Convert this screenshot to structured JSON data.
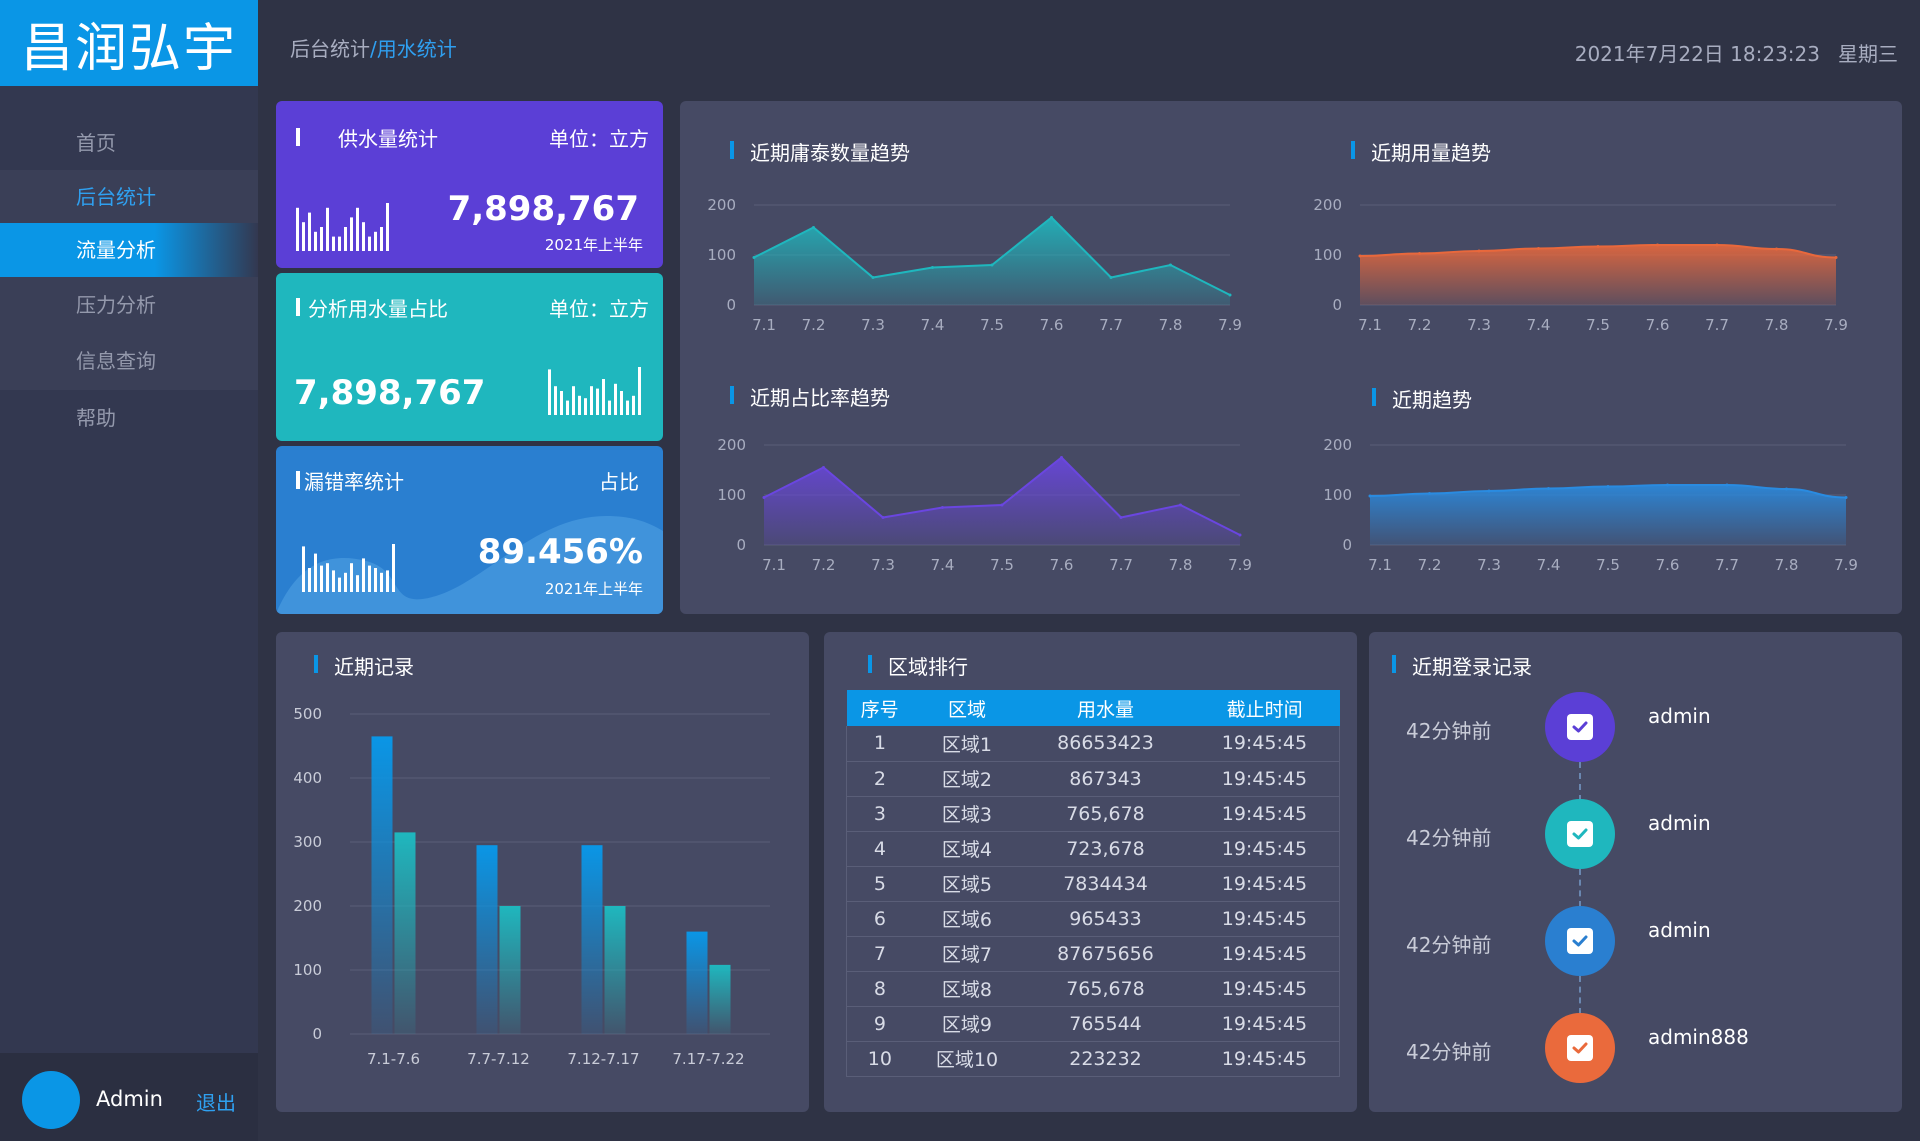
{
  "logo": "昌润弘宇",
  "breadcrumb": {
    "parent": "后台统计",
    "sep": "/",
    "current": "用水统计"
  },
  "datetime": {
    "date": "2021年7月22日 18:23:23",
    "weekday": "星期三"
  },
  "sidebar": {
    "items": [
      {
        "label": "首页"
      },
      {
        "label": "后台统计"
      },
      {
        "label": "流量分析"
      },
      {
        "label": "压力分析"
      },
      {
        "label": "信息查询"
      },
      {
        "label": "帮助"
      }
    ]
  },
  "user": {
    "name": "Admin",
    "logout": "退出"
  },
  "cards": {
    "supply": {
      "title": "供水量统计",
      "unit": "单位：立方",
      "value": "7,898,767",
      "period": "2021年上半年",
      "bars": [
        0.9,
        0.6,
        0.8,
        0.4,
        0.5,
        0.9,
        0.3,
        0.3,
        0.5,
        0.7,
        0.9,
        0.6,
        0.3,
        0.4,
        0.5,
        1.0
      ]
    },
    "ratio": {
      "title": "分析用水量占比",
      "unit": "单位：立方",
      "value": "7,898,767",
      "bars": [
        0.95,
        0.6,
        0.5,
        0.3,
        0.6,
        0.4,
        0.35,
        0.6,
        0.55,
        0.75,
        0.3,
        0.65,
        0.5,
        0.3,
        0.4,
        1.0
      ]
    },
    "leak": {
      "title": "漏错率统计",
      "unit": "占比",
      "value": "89.456%",
      "period": "2021年上半年",
      "bars": [
        0.95,
        0.5,
        0.8,
        0.55,
        0.6,
        0.45,
        0.3,
        0.4,
        0.6,
        0.35,
        0.7,
        0.55,
        0.5,
        0.4,
        0.45,
        1.0
      ]
    }
  },
  "trends": {
    "t1": {
      "title": "近期庸泰数量趋势"
    },
    "t2": {
      "title": "近期用量趋势"
    },
    "t3": {
      "title": "近期占比率趋势"
    },
    "t4": {
      "title": "近期趋势"
    }
  },
  "records": {
    "title": "近期记录"
  },
  "ranking": {
    "title": "区域排行",
    "headers": [
      "序号",
      "区域",
      "用水量",
      "截止时间"
    ],
    "rows": [
      [
        "1",
        "区域1",
        "86653423",
        "19:45:45"
      ],
      [
        "2",
        "区域2",
        "867343",
        "19:45:45"
      ],
      [
        "3",
        "区域3",
        "765,678",
        "19:45:45"
      ],
      [
        "4",
        "区域4",
        "723,678",
        "19:45:45"
      ],
      [
        "5",
        "区域5",
        "7834434",
        "19:45:45"
      ],
      [
        "6",
        "区域6",
        "965433",
        "19:45:45"
      ],
      [
        "7",
        "区域7",
        "87675656",
        "19:45:45"
      ],
      [
        "8",
        "区域8",
        "765,678",
        "19:45:45"
      ],
      [
        "9",
        "区域9",
        "765544",
        "19:45:45"
      ],
      [
        "10",
        "区域10",
        "223232",
        "19:45:45"
      ]
    ]
  },
  "logins": {
    "title": "近期登录记录",
    "items": [
      {
        "time": "42分钟前",
        "user": "admin",
        "color": "#5b3fd6"
      },
      {
        "time": "42分钟前",
        "user": "admin",
        "color": "#1fb7be"
      },
      {
        "time": "42分钟前",
        "user": "admin",
        "color": "#2a7fd0"
      },
      {
        "time": "42分钟前",
        "user": "admin888",
        "color": "#ea6a3c"
      }
    ]
  },
  "chart_data": [
    {
      "type": "area",
      "title": "近期庸泰数量趋势",
      "x": [
        "7.1",
        "7.2",
        "7.3",
        "7.4",
        "7.5",
        "7.6",
        "7.7",
        "7.8",
        "7.9"
      ],
      "ylim": [
        0,
        200
      ],
      "yticks": [
        "0",
        "100",
        "200"
      ],
      "values": [
        95,
        155,
        55,
        75,
        80,
        175,
        55,
        80,
        20
      ],
      "color": "#1fb7be"
    },
    {
      "type": "area",
      "title": "近期用量趋势",
      "x": [
        "7.1",
        "7.2",
        "7.3",
        "7.4",
        "7.5",
        "7.6",
        "7.7",
        "7.8",
        "7.9"
      ],
      "ylim": [
        0,
        200
      ],
      "yticks": [
        "0",
        "100",
        "200"
      ],
      "values": [
        98,
        103,
        108,
        113,
        117,
        120,
        120,
        112,
        95
      ],
      "color": "#e8683c"
    },
    {
      "type": "area",
      "title": "近期占比率趋势",
      "x": [
        "7.1",
        "7.2",
        "7.3",
        "7.4",
        "7.5",
        "7.6",
        "7.7",
        "7.8",
        "7.9"
      ],
      "ylim": [
        0,
        200
      ],
      "yticks": [
        "0",
        "100",
        "200"
      ],
      "values": [
        95,
        155,
        55,
        75,
        80,
        175,
        55,
        80,
        20
      ],
      "color": "#6a46e0"
    },
    {
      "type": "area",
      "title": "近期趋势",
      "x": [
        "7.1",
        "7.2",
        "7.3",
        "7.4",
        "7.5",
        "7.6",
        "7.7",
        "7.8",
        "7.9"
      ],
      "ylim": [
        0,
        200
      ],
      "yticks": [
        "0",
        "100",
        "200"
      ],
      "values": [
        98,
        103,
        108,
        113,
        117,
        120,
        120,
        112,
        95
      ],
      "color": "#2a8be0"
    },
    {
      "type": "bar",
      "title": "近期记录",
      "categories": [
        "7.1-7.6",
        "7.7-7.12",
        "7.12-7.17",
        "7.17-7.22"
      ],
      "series": [
        {
          "values": [
            465,
            295,
            295,
            160
          ],
          "color": "#0a96e6"
        },
        {
          "values": [
            315,
            200,
            200,
            108
          ],
          "color": "#1fb7be"
        }
      ],
      "ylim": [
        0,
        500
      ],
      "yticks": [
        "0",
        "100",
        "200",
        "300",
        "400",
        "500"
      ]
    }
  ]
}
